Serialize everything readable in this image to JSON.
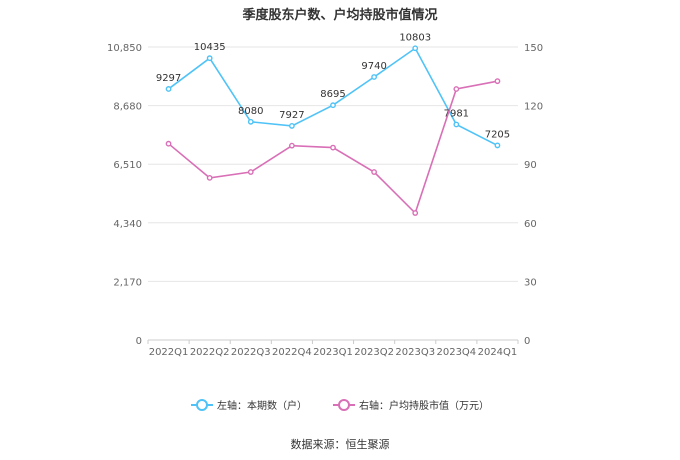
{
  "colors": {
    "left_series": "#4fc3f7",
    "right_series": "#d96fb6",
    "grid": "#e6e6e6",
    "axis_text": "#666666"
  },
  "chart_data": {
    "type": "line",
    "title": "季度股东户数、户均持股市值情况",
    "categories": [
      "2022Q1",
      "2022Q2",
      "2022Q3",
      "2022Q4",
      "2023Q1",
      "2023Q2",
      "2023Q3",
      "2023Q4",
      "2024Q1"
    ],
    "series": [
      {
        "name": "左轴：本期数（户）",
        "axis": "left",
        "values": [
          9297,
          10435,
          8080,
          7927,
          8695,
          9740,
          10803,
          7981,
          7205
        ],
        "labels": [
          "9297",
          "10435",
          "8080",
          "7927",
          "8695",
          "9740",
          "10803",
          "7981",
          "7205"
        ]
      },
      {
        "name": "右轴：户均持股市值（万元）",
        "axis": "right",
        "values": [
          100.5,
          83.0,
          86.0,
          99.5,
          98.5,
          86.0,
          65.0,
          128.5,
          132.5
        ]
      }
    ],
    "left_axis": {
      "ticks": [
        "0",
        "2,170",
        "4,340",
        "6,510",
        "8,680",
        "10,850"
      ],
      "ylim": [
        0,
        10850
      ]
    },
    "right_axis": {
      "ticks": [
        "0",
        "30",
        "60",
        "90",
        "120",
        "150"
      ],
      "ylim": [
        0,
        150
      ]
    },
    "grid": true,
    "legend_position": "bottom"
  },
  "source": "数据来源：恒生聚源"
}
